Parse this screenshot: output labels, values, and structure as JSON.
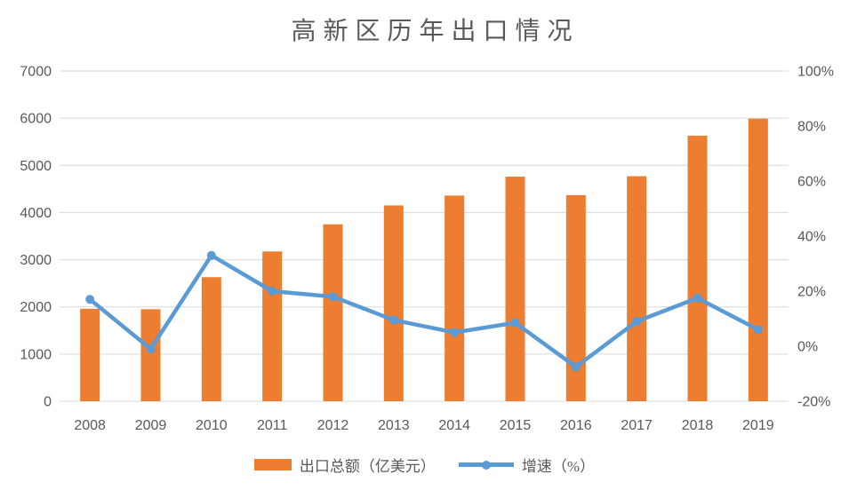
{
  "title": "高新区历年出口情况",
  "legend": {
    "bar_label": "出口总额（亿美元）",
    "line_label": "增速（%）"
  },
  "colors": {
    "bar": "#ED7D31",
    "line": "#5B9BD5",
    "grid": "#D9D9D9",
    "axis_line": "#D9D9D9",
    "text": "#595959",
    "background": "#FFFFFF"
  },
  "chart_data": {
    "type": "bar+line combo",
    "title": "高新区历年出口情况",
    "categories": [
      "2008",
      "2009",
      "2010",
      "2011",
      "2012",
      "2013",
      "2014",
      "2015",
      "2016",
      "2017",
      "2018",
      "2019"
    ],
    "series": [
      {
        "name": "出口总额（亿美元）",
        "type": "bar",
        "axis": "left",
        "color": "#ED7D31",
        "values": [
          1960,
          1950,
          2630,
          3175,
          3750,
          4150,
          4360,
          4760,
          4370,
          4770,
          5630,
          5990
        ]
      },
      {
        "name": "增速（%）",
        "type": "line",
        "axis": "right",
        "color": "#5B9BD5",
        "values": [
          17,
          -1,
          33,
          20,
          18,
          9.5,
          5,
          8.5,
          -7.5,
          9,
          17.5,
          6
        ]
      }
    ],
    "left_axis": {
      "min": 0,
      "max": 7000,
      "step": 1000,
      "suffix": "",
      "ticks": [
        0,
        1000,
        2000,
        3000,
        4000,
        5000,
        6000,
        7000
      ]
    },
    "right_axis": {
      "min": -20,
      "max": 100,
      "step": 20,
      "suffix": "%",
      "ticks": [
        -20,
        0,
        20,
        40,
        60,
        80,
        100
      ]
    },
    "grid": "horizontal-only",
    "legend_position": "bottom-center",
    "xlabel": "",
    "ylabel_left": "出口总额（亿美元）",
    "ylabel_right": "增速（%）"
  }
}
